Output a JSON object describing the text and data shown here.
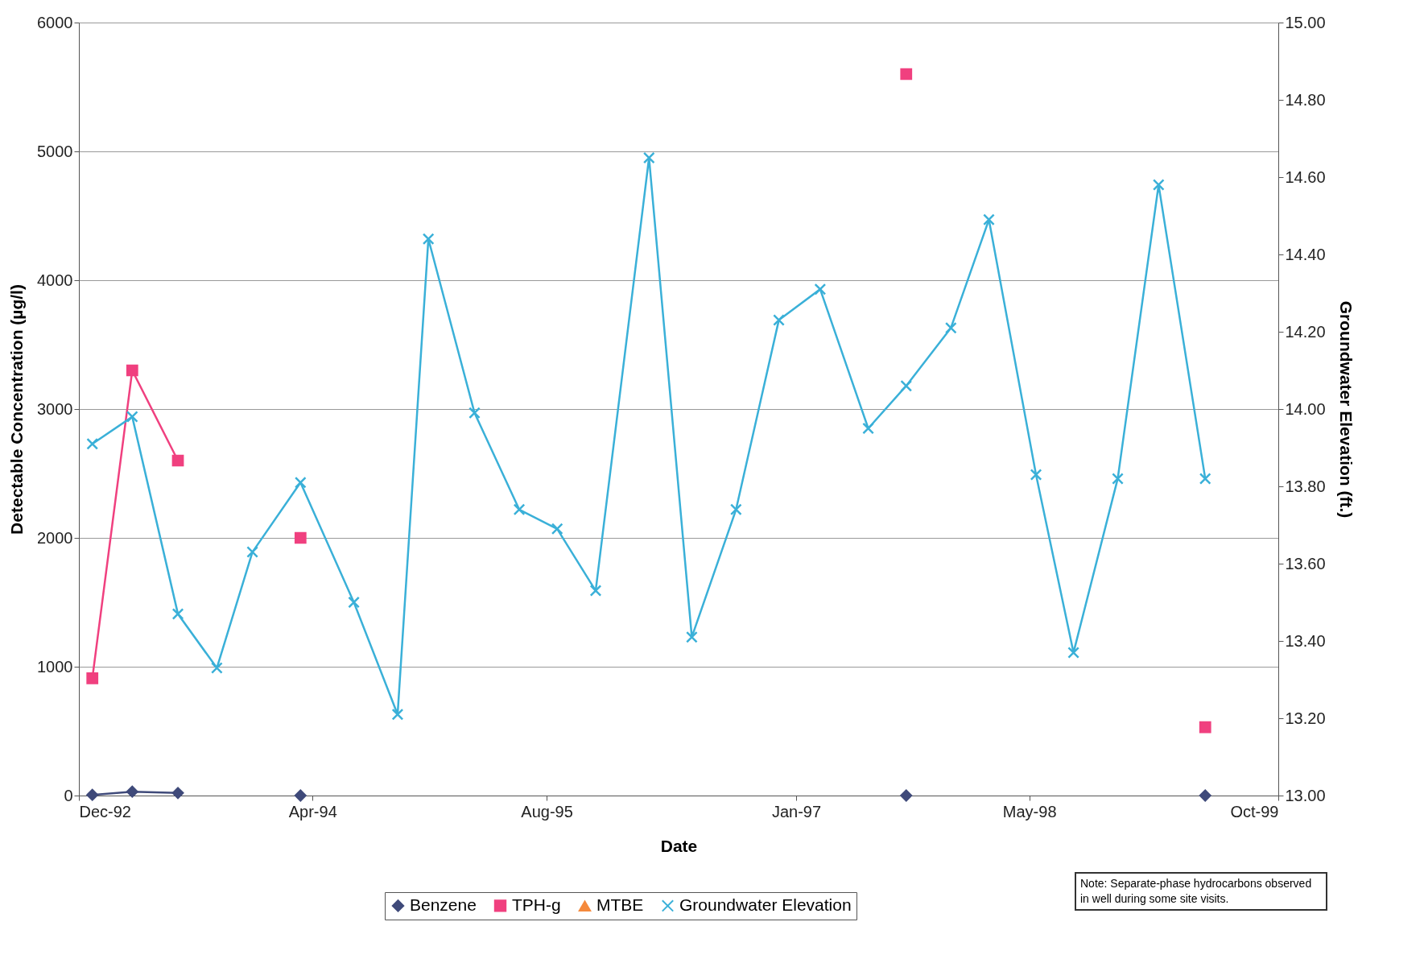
{
  "chart_data": {
    "type": "line",
    "xlabel": "Date",
    "ylabel": "Detectable Concentration (µg/l)",
    "y2label": "Groundwater Elevation (ft.)",
    "x": [
      "1992-12-29",
      "1993-03-22",
      "1993-06-25",
      "1993-09-14",
      "1993-11-27",
      "1994-03-07",
      "1994-06-26",
      "1994-09-25",
      "1994-11-28",
      "1995-03-04",
      "1995-06-05",
      "1995-08-23",
      "1995-11-11",
      "1996-03-01",
      "1996-05-29",
      "1996-08-29",
      "1996-11-26",
      "1997-02-20",
      "1997-05-31",
      "1997-08-18",
      "1997-11-19",
      "1998-02-06",
      "1998-05-15",
      "1998-08-01",
      "1998-11-01",
      "1999-01-25",
      "1999-05-02"
    ],
    "series": [
      {
        "name": "Benzene",
        "color": "#3f4a7a",
        "marker": "diamond",
        "values": [
          5,
          30,
          20,
          null,
          null,
          0,
          null,
          null,
          null,
          null,
          null,
          null,
          null,
          null,
          null,
          null,
          null,
          null,
          null,
          0,
          null,
          null,
          null,
          null,
          null,
          null,
          0
        ]
      },
      {
        "name": "TPH-g",
        "color": "#f0407f",
        "marker": "square",
        "values": [
          910,
          3300,
          2600,
          null,
          null,
          2000,
          null,
          null,
          null,
          null,
          null,
          null,
          null,
          null,
          null,
          null,
          null,
          null,
          null,
          5600,
          null,
          null,
          null,
          null,
          null,
          null,
          530
        ]
      },
      {
        "name": "MTBE",
        "color": "#f58a3c",
        "marker": "triangle",
        "values": [
          null,
          null,
          null,
          null,
          null,
          null,
          null,
          null,
          null,
          null,
          null,
          null,
          null,
          null,
          null,
          null,
          null,
          null,
          null,
          null,
          null,
          null,
          null,
          null,
          null,
          null,
          null
        ]
      },
      {
        "name": "Groundwater Elevation",
        "color": "#3ab0d8",
        "marker": "cross",
        "axis": "y2",
        "values": [
          13.91,
          13.98,
          13.47,
          13.33,
          13.63,
          13.81,
          13.5,
          13.21,
          14.44,
          13.99,
          13.74,
          13.69,
          13.53,
          14.65,
          13.41,
          13.74,
          14.23,
          14.31,
          13.95,
          14.06,
          14.21,
          14.49,
          13.83,
          13.37,
          13.82,
          14.58,
          13.82
        ]
      }
    ],
    "xlim": [
      "1992-12",
      "1999-10"
    ],
    "xticks": [
      {
        "value": "1992-12",
        "label": "Dec-92"
      },
      {
        "value": "1994-04",
        "label": "Apr-94"
      },
      {
        "value": "1995-08",
        "label": "Aug-95"
      },
      {
        "value": "1997-01",
        "label": "Jan-97"
      },
      {
        "value": "1998-05",
        "label": "May-98"
      },
      {
        "value": "1999-10",
        "label": "Oct-99"
      }
    ],
    "ylim": [
      0,
      6000
    ],
    "yticks": [
      0,
      1000,
      2000,
      3000,
      4000,
      5000,
      6000
    ],
    "y2lim": [
      13,
      15
    ],
    "y2ticks": [
      {
        "value": 13,
        "label": "13.00"
      },
      {
        "value": 13.2,
        "label": "13.20"
      },
      {
        "value": 13.4,
        "label": "13.40"
      },
      {
        "value": 13.6,
        "label": "13.60"
      },
      {
        "value": 13.8,
        "label": "13.80"
      },
      {
        "value": 14,
        "label": "14.00"
      },
      {
        "value": 14.2,
        "label": "14.20"
      },
      {
        "value": 14.4,
        "label": "14.40"
      },
      {
        "value": 14.6,
        "label": "14.60"
      },
      {
        "value": 14.8,
        "label": "14.80"
      },
      {
        "value": 15,
        "label": "15.00"
      }
    ],
    "grid": "y",
    "legend": "bottom",
    "annotations": [
      "Note:  Separate-phase hydrocarbons observed in well during some site visits."
    ]
  }
}
